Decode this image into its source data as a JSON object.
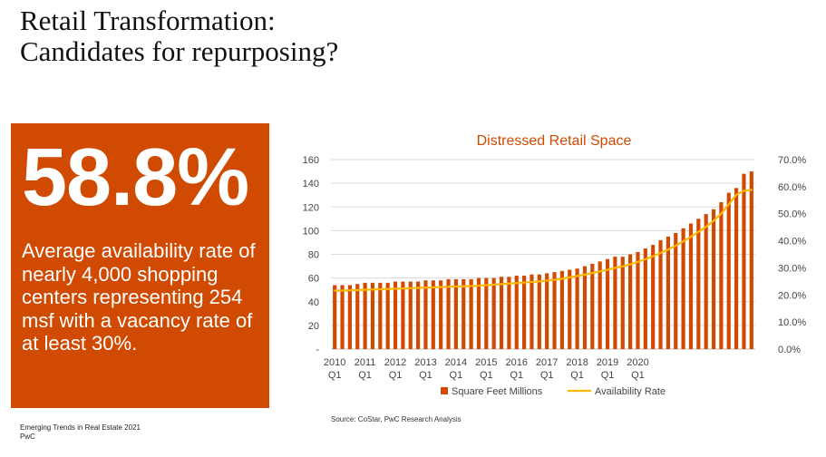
{
  "slide": {
    "title_line1": "Retail Transformation:",
    "title_line2": "Candidates for repurposing?",
    "stat": "58.8%",
    "stat_description": "Average availability rate of nearly 4,000 shopping centers representing 254 msf with a vacancy rate of at least 30%.",
    "accent_color": "#d04a02",
    "footer_line1": "Emerging Trends in Real Estate 2021",
    "footer_line2": "PwC",
    "source": "Source:  CoStar, PwC Research Analysis"
  },
  "chart_data": {
    "type": "bar",
    "title": "Distressed Retail Space",
    "title_color": "#d04a02",
    "y_left": {
      "lim": [
        0,
        160
      ],
      "ticks": [
        "-",
        "20",
        "40",
        "60",
        "80",
        "100",
        "120",
        "140",
        "160"
      ]
    },
    "y_right": {
      "lim": [
        0,
        0.7
      ],
      "ticks": [
        "0.0%",
        "10.0%",
        "20.0%",
        "30.0%",
        "40.0%",
        "50.0%",
        "60.0%",
        "70.0%"
      ]
    },
    "x_tick_labels": [
      {
        "year": "2010",
        "q": "Q1"
      },
      {
        "year": "2011",
        "q": "Q1"
      },
      {
        "year": "2012",
        "q": "Q1"
      },
      {
        "year": "2013",
        "q": "Q1"
      },
      {
        "year": "2014",
        "q": "Q1"
      },
      {
        "year": "2015",
        "q": "Q1"
      },
      {
        "year": "2016",
        "q": "Q1"
      },
      {
        "year": "2017",
        "q": "Q1"
      },
      {
        "year": "2018",
        "q": "Q1"
      },
      {
        "year": "2019",
        "q": "Q1"
      },
      {
        "year": "2020",
        "q": "Q1"
      }
    ],
    "grid": true,
    "legend_position": "bottom",
    "series": [
      {
        "name": "Square Feet Millions",
        "kind": "bar",
        "axis": "left",
        "color": "#d04a02",
        "values": [
          54,
          54,
          54,
          55,
          56,
          56,
          56,
          56,
          57,
          57,
          57,
          57,
          58,
          58,
          58,
          59,
          59,
          59,
          59,
          60,
          60,
          60,
          61,
          61,
          62,
          62,
          63,
          63,
          64,
          65,
          66,
          67,
          68,
          70,
          72,
          74,
          76,
          78,
          78,
          80,
          82,
          85,
          88,
          92,
          95,
          98,
          102,
          106,
          110,
          114,
          118,
          124,
          132,
          136,
          148,
          150
        ]
      },
      {
        "name": "Availability Rate",
        "kind": "line",
        "axis": "right",
        "color": "#ffb600",
        "values": [
          0.216,
          0.216,
          0.217,
          0.218,
          0.219,
          0.22,
          0.221,
          0.222,
          0.223,
          0.224,
          0.225,
          0.226,
          0.227,
          0.228,
          0.229,
          0.23,
          0.231,
          0.232,
          0.233,
          0.234,
          0.236,
          0.238,
          0.24,
          0.242,
          0.244,
          0.246,
          0.248,
          0.25,
          0.253,
          0.256,
          0.26,
          0.265,
          0.27,
          0.275,
          0.281,
          0.287,
          0.293,
          0.3,
          0.306,
          0.313,
          0.322,
          0.332,
          0.343,
          0.355,
          0.368,
          0.382,
          0.398,
          0.415,
          0.433,
          0.452,
          0.474,
          0.5,
          0.535,
          0.57,
          0.585,
          0.588
        ]
      }
    ]
  }
}
